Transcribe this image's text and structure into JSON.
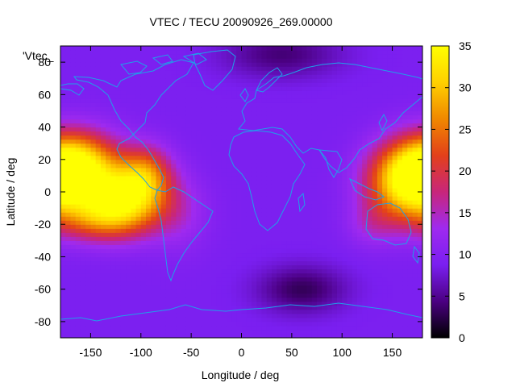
{
  "chart_data": {
    "type": "heatmap",
    "title": "VTEC / TECU 20090926_269.00000",
    "xlabel": "Longitude / deg",
    "ylabel": "Latitude / deg",
    "legend_entry": "'Vtec_",
    "xlim": [
      -180,
      180
    ],
    "ylim": [
      -90,
      90
    ],
    "x_ticks": [
      -150,
      -100,
      -50,
      0,
      50,
      100,
      150
    ],
    "y_ticks": [
      -80,
      -60,
      -40,
      -20,
      0,
      20,
      40,
      60,
      80
    ],
    "colorbar": {
      "range": [
        0,
        35
      ],
      "ticks": [
        0,
        5,
        10,
        15,
        20,
        25,
        30,
        35
      ],
      "colormap": [
        "#000000",
        "#4b0082",
        "#7a1ff0",
        "#9f2aef",
        "#c8267a",
        "#e3401a",
        "#f08800",
        "#ffd000",
        "#ffff00"
      ]
    },
    "grid": false,
    "features": [
      {
        "lon": -165,
        "lat": 18,
        "lon_spread": 30,
        "lat_spread": 14,
        "value": 22
      },
      {
        "lon": -120,
        "lat": -5,
        "lon_spread": 32,
        "lat_spread": 14,
        "value": 24
      },
      {
        "lon": -95,
        "lat": 12,
        "lon_spread": 18,
        "lat_spread": 12,
        "value": 12
      },
      {
        "lon": -145,
        "lat": -18,
        "lon_spread": 30,
        "lat_spread": 9,
        "value": 7
      },
      {
        "lon": 165,
        "lat": 5,
        "lon_spread": 28,
        "lat_spread": 16,
        "value": 23
      },
      {
        "lon": 130,
        "lat": -20,
        "lon_spread": 18,
        "lat_spread": 10,
        "value": 4
      },
      {
        "lon": 60,
        "lat": -60,
        "lon_spread": 30,
        "lat_spread": 10,
        "value": -6
      },
      {
        "lon": 40,
        "lat": 85,
        "lon_spread": 40,
        "lat_spread": 10,
        "value": -5
      },
      {
        "lon": -60,
        "lat": -15,
        "lon_spread": 20,
        "lat_spread": 16,
        "value": 3
      }
    ],
    "base_value": 9
  }
}
